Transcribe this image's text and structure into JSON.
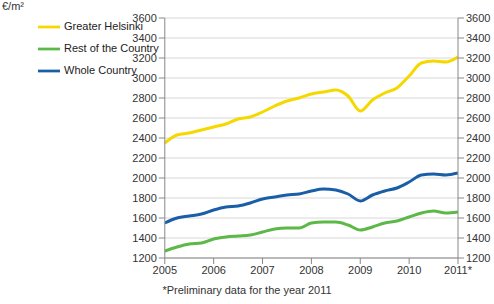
{
  "chart_data": {
    "type": "line",
    "ylabel": "€/m²",
    "annotation": "*Preliminary data for the year 2011",
    "x": [
      2005,
      2005.25,
      2005.5,
      2005.75,
      2006,
      2006.25,
      2006.5,
      2006.75,
      2007,
      2007.25,
      2007.5,
      2007.75,
      2008,
      2008.25,
      2008.5,
      2008.75,
      2009,
      2009.25,
      2009.5,
      2009.75,
      2010,
      2010.25,
      2010.5,
      2010.75,
      2011
    ],
    "series": [
      {
        "name": "Greater Helsinki",
        "color": "#f5d800",
        "values": [
          2350,
          2430,
          2450,
          2480,
          2510,
          2540,
          2590,
          2610,
          2660,
          2720,
          2770,
          2800,
          2840,
          2860,
          2880,
          2820,
          2670,
          2780,
          2850,
          2900,
          3020,
          3150,
          3170,
          3160,
          3210
        ]
      },
      {
        "name": "Whole Country",
        "color": "#1a5ea8",
        "values": [
          1550,
          1600,
          1620,
          1640,
          1680,
          1710,
          1720,
          1750,
          1790,
          1810,
          1830,
          1840,
          1870,
          1890,
          1880,
          1840,
          1770,
          1830,
          1870,
          1900,
          1960,
          2030,
          2040,
          2030,
          2050
        ]
      },
      {
        "name": "Rest of the Country",
        "color": "#5cb847",
        "values": [
          1270,
          1310,
          1340,
          1350,
          1390,
          1410,
          1420,
          1430,
          1460,
          1490,
          1500,
          1500,
          1550,
          1560,
          1560,
          1530,
          1480,
          1510,
          1550,
          1570,
          1610,
          1650,
          1670,
          1650,
          1660
        ]
      }
    ],
    "xlim": [
      2005,
      2011
    ],
    "xticks": [
      2005,
      2006,
      2007,
      2008,
      2009,
      2010,
      {
        "value": 2011,
        "label": "2011*"
      }
    ],
    "ylim": [
      1200,
      3600
    ],
    "yticks": [
      1200,
      1400,
      1600,
      1800,
      2000,
      2200,
      2400,
      2600,
      2800,
      3000,
      3200,
      3400,
      3600
    ],
    "y2lim": [
      1200,
      3600
    ],
    "y2ticks": [
      1200,
      1400,
      1600,
      1800,
      2000,
      2200,
      2400,
      2600,
      2800,
      3000,
      3200,
      3400,
      3600
    ],
    "grid": true,
    "legend": "top-left"
  }
}
